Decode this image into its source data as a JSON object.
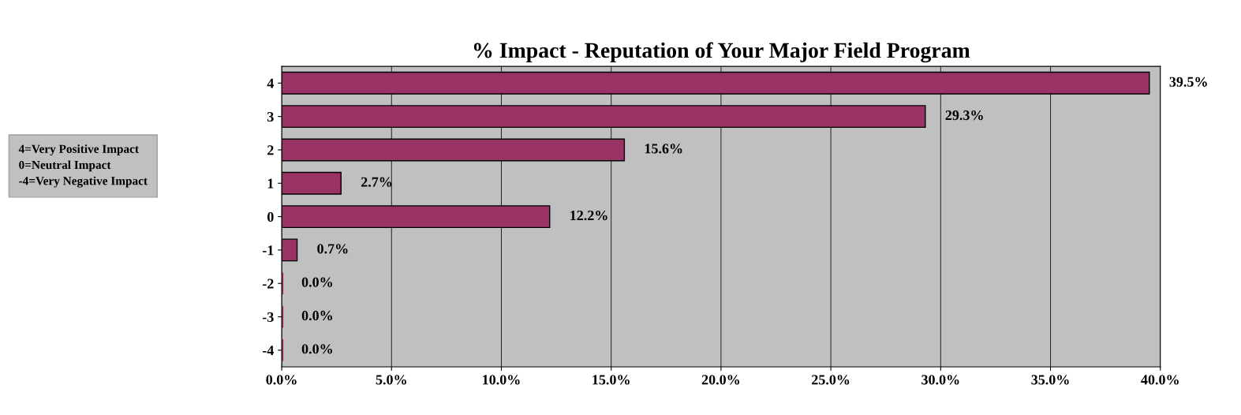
{
  "chart_data": {
    "type": "bar",
    "orientation": "horizontal",
    "title": "% Impact - Reputation of Your Major Field Program",
    "categories": [
      "4",
      "3",
      "2",
      "1",
      "0",
      "-1",
      "-2",
      "-3",
      "-4"
    ],
    "values": [
      39.5,
      29.3,
      15.6,
      2.7,
      12.2,
      0.7,
      0.0,
      0.0,
      0.0
    ],
    "value_labels": [
      "39.5%",
      "29.3%",
      "15.6%",
      "2.7%",
      "12.2%",
      "0.7%",
      "0.0%",
      "0.0%",
      "0.0%"
    ],
    "color": "#993366",
    "xlim": [
      0,
      40
    ],
    "xticks": [
      {
        "value": 0,
        "label": "0.0%"
      },
      {
        "value": 5,
        "label": "5.0%"
      },
      {
        "value": 10,
        "label": "10.0%"
      },
      {
        "value": 15,
        "label": "15.0%"
      },
      {
        "value": 20,
        "label": "20.0%"
      },
      {
        "value": 25,
        "label": "25.0%"
      },
      {
        "value": 30,
        "label": "30.0%"
      },
      {
        "value": 35,
        "label": "35.0%"
      },
      {
        "value": 40,
        "label": "40.0%"
      }
    ],
    "grid": "x",
    "legend": false,
    "annotations": [
      "4=Very Positive Impact\n0=Neutral Impact\n-4=Very Negative Impact"
    ]
  }
}
